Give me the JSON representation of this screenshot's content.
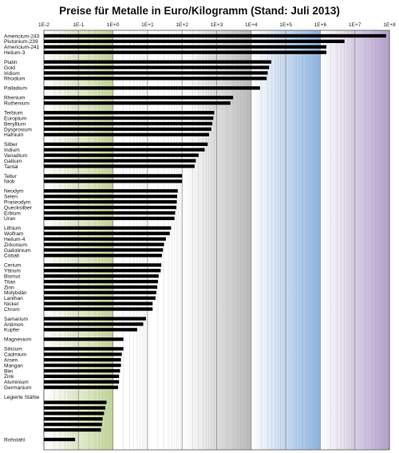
{
  "colors": {
    "bg": "#ffffff",
    "bar": "#000000",
    "band_green": "#c4d79a",
    "band_gray": "#bcbcbc",
    "band_blue": "#8eb4e3",
    "band_purple": "#b4a0cf",
    "grid": "#9a9a9a"
  },
  "chart_data": {
    "type": "bar",
    "orientation": "horizontal",
    "title": "Preise für Metalle in Euro/Kilogramm  (Stand: Juli 2013)",
    "x_scale": "log",
    "xlim": [
      0.01,
      100000000
    ],
    "x_ticks": [
      "1E-2",
      "1E-1",
      "1E+0",
      "1E+1",
      "1E+2",
      "1E+3",
      "1E+4",
      "1E+5",
      "1E+6",
      "1E+7",
      "1E+8"
    ],
    "grid": true,
    "groups": [
      {
        "items": [
          {
            "label": "Americium-243",
            "value": 80000000
          },
          {
            "label": "Plutonium-239",
            "value": 5000000
          },
          {
            "label": "Americium-241",
            "value": 1500000
          },
          {
            "label": "Helium-3",
            "value": 1500000
          }
        ]
      },
      {
        "items": [
          {
            "label": "Platin",
            "value": 38000
          },
          {
            "label": "Gold",
            "value": 33000
          },
          {
            "label": "Iridium",
            "value": 30000
          },
          {
            "label": "Rhodium",
            "value": 28000
          }
        ]
      },
      {
        "items": [
          {
            "label": "Palladium",
            "value": 18000
          }
        ]
      },
      {
        "items": [
          {
            "label": "Rhenium",
            "value": 3000
          },
          {
            "label": "Ruthenium",
            "value": 2500
          }
        ]
      },
      {
        "items": [
          {
            "label": "Terbium",
            "value": 850
          },
          {
            "label": "Europium",
            "value": 800
          },
          {
            "label": "Beryllium",
            "value": 750
          },
          {
            "label": "Dysprosium",
            "value": 700
          },
          {
            "label": "Hafnium",
            "value": 600
          }
        ]
      },
      {
        "items": [
          {
            "label": "Silber",
            "value": 550
          },
          {
            "label": "Indium",
            "value": 450
          },
          {
            "label": "Vanadium",
            "value": 300
          },
          {
            "label": "Gallium",
            "value": 250
          },
          {
            "label": "Tantal",
            "value": 230
          }
        ]
      },
      {
        "items": [
          {
            "label": "Tellur",
            "value": 100
          },
          {
            "label": "Niob",
            "value": 100
          }
        ]
      },
      {
        "items": [
          {
            "label": "Neodym",
            "value": 75
          },
          {
            "label": "Selen",
            "value": 72
          },
          {
            "label": "Praseodym",
            "value": 70
          },
          {
            "label": "Quecksilber",
            "value": 68
          },
          {
            "label": "Erbium",
            "value": 63
          },
          {
            "label": "Uran",
            "value": 60
          }
        ]
      },
      {
        "items": [
          {
            "label": "Lithium",
            "value": 48
          },
          {
            "label": "Wolfram",
            "value": 44
          },
          {
            "label": "Helium-4",
            "value": 34
          },
          {
            "label": "Zirkonium",
            "value": 30
          },
          {
            "label": "Gadolinium",
            "value": 28
          },
          {
            "label": "Cobalt",
            "value": 26
          }
        ]
      },
      {
        "items": [
          {
            "label": "Cerium",
            "value": 25
          },
          {
            "label": "Yttrium",
            "value": 24
          },
          {
            "label": "Bismut",
            "value": 21
          },
          {
            "label": "Titan",
            "value": 20
          },
          {
            "label": "Zinn",
            "value": 19
          },
          {
            "label": "Molybdän",
            "value": 18
          },
          {
            "label": "Lanthan",
            "value": 17
          },
          {
            "label": "Nickel",
            "value": 14
          },
          {
            "label": "Chrom",
            "value": 14
          }
        ]
      },
      {
        "items": [
          {
            "label": "Samarium",
            "value": 9
          },
          {
            "label": "Antimon",
            "value": 7.5
          },
          {
            "label": "Kupfer",
            "value": 5
          }
        ]
      },
      {
        "items": [
          {
            "label": "Magnesium",
            "value": 2
          }
        ]
      },
      {
        "items": [
          {
            "label": "Silicium",
            "value": 2
          },
          {
            "label": "Cadmium",
            "value": 1.8
          },
          {
            "label": "Arsen",
            "value": 1.7
          },
          {
            "label": "Mangan",
            "value": 1.7
          },
          {
            "label": "Blei",
            "value": 1.6
          },
          {
            "label": "Zink",
            "value": 1.5
          },
          {
            "label": "Aluminium",
            "value": 1.5
          },
          {
            "label": "Germanium",
            "value": 1.4
          }
        ]
      },
      {
        "items": [
          {
            "label": "Legierte Stähle",
            "value": null
          },
          {
            "label": "",
            "value": 0.65
          },
          {
            "label": "",
            "value": 0.6
          },
          {
            "label": "",
            "value": 0.55
          },
          {
            "label": "",
            "value": 0.5
          },
          {
            "label": "",
            "value": 0.48
          },
          {
            "label": "",
            "value": 0.45
          }
        ]
      },
      {
        "items": [
          {
            "label": "Rohstahl",
            "value": 0.08
          }
        ]
      }
    ],
    "bands": [
      {
        "from": 0.01,
        "to": 1,
        "color": "#c4d79a"
      },
      {
        "from": 100,
        "to": 10000,
        "color": "#bcbcbc"
      },
      {
        "from": 10000,
        "to": 1000000,
        "color": "#8eb4e3"
      },
      {
        "from": 1000000,
        "to": 100000000,
        "color": "#b4a0cf"
      }
    ]
  }
}
